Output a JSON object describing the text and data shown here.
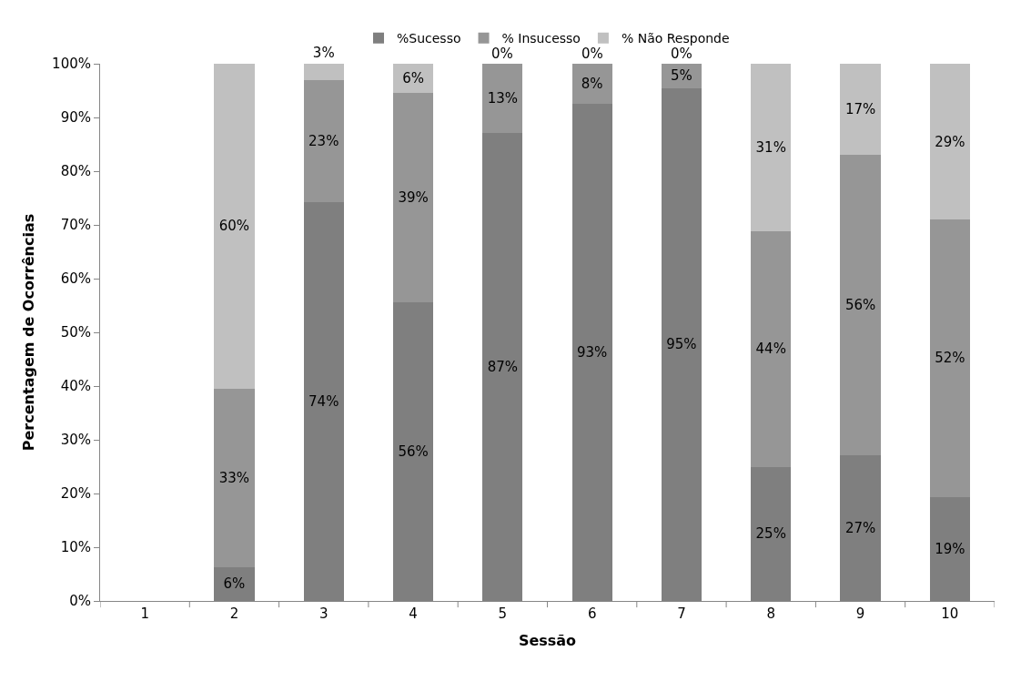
{
  "chart_data": {
    "type": "bar",
    "stacked": true,
    "xlabel": "Sessão",
    "ylabel": "Percentagem de Ocorrências",
    "categories": [
      "1",
      "2",
      "3",
      "4",
      "5",
      "6",
      "7",
      "8",
      "9",
      "10"
    ],
    "series": [
      {
        "name": "%Sucesso",
        "color": "#7f7f7f",
        "values": [
          null,
          6.3,
          74.3,
          55.6,
          87.1,
          92.5,
          95.5,
          25.0,
          27.1,
          19.4
        ],
        "value_labels": [
          null,
          "6%",
          "74%",
          "56%",
          "87%",
          "93%",
          "95%",
          "25%",
          "27%",
          "19%"
        ]
      },
      {
        "name": "% Insucesso",
        "color": "#969696",
        "values": [
          null,
          33.2,
          22.6,
          38.9,
          12.9,
          7.5,
          4.5,
          43.8,
          56.0,
          51.6
        ],
        "value_labels": [
          null,
          "33%",
          "23%",
          "39%",
          "13%",
          "8%",
          "5%",
          "44%",
          "56%",
          "52%"
        ]
      },
      {
        "name": "% Não Responde",
        "color": "#c0c0c0",
        "values": [
          null,
          60.5,
          3.1,
          5.5,
          0,
          0,
          0,
          31.2,
          16.9,
          29.0
        ],
        "value_labels": [
          null,
          "60%",
          "3%",
          "6%",
          "0%",
          "0%",
          "0%",
          "31%",
          "17%",
          "29%"
        ]
      }
    ],
    "ylim": [
      0,
      100
    ],
    "yticks": [
      {
        "value": 0,
        "label": "0%"
      },
      {
        "value": 10,
        "label": "10%"
      },
      {
        "value": 20,
        "label": "20%"
      },
      {
        "value": 30,
        "label": "30%"
      },
      {
        "value": 40,
        "label": "40%"
      },
      {
        "value": 50,
        "label": "50%"
      },
      {
        "value": 60,
        "label": "60%"
      },
      {
        "value": 70,
        "label": "70%"
      },
      {
        "value": 80,
        "label": "80%"
      },
      {
        "value": 90,
        "label": "90%"
      },
      {
        "value": 100,
        "label": "100%"
      }
    ],
    "legend": "top"
  }
}
